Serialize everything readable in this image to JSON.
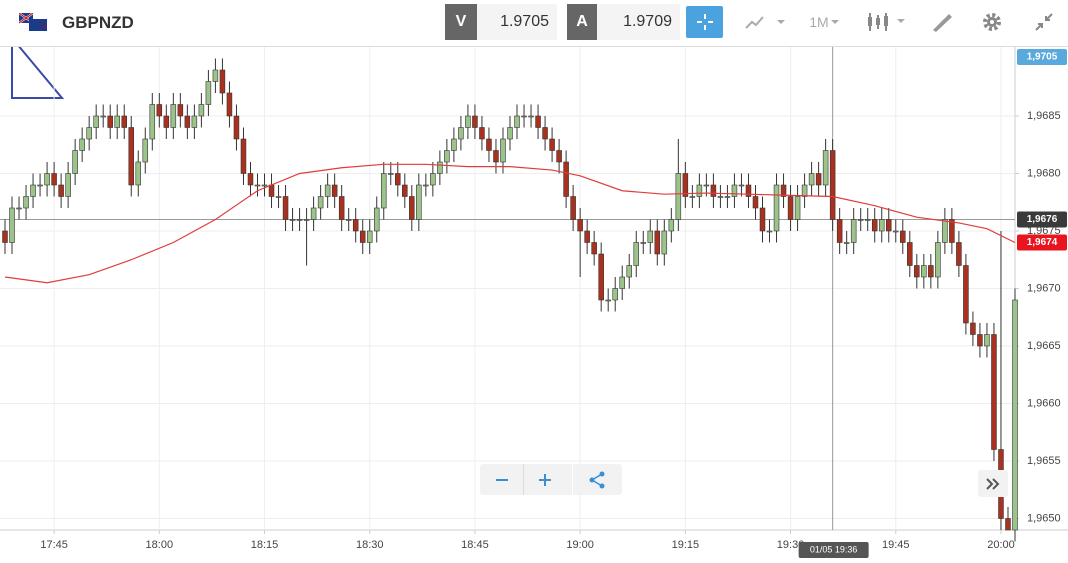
{
  "header": {
    "symbol": "GBPNZD",
    "bid_label": "V",
    "bid": "1.9705",
    "ask_label": "A",
    "ask": "1.9709",
    "timeframe": "1M"
  },
  "chart_data": {
    "type": "candlestick",
    "x": [
      "17:38",
      "17:39",
      "17:40",
      "17:41",
      "17:42",
      "17:43",
      "17:44",
      "17:45",
      "17:46",
      "17:47",
      "17:48",
      "17:49",
      "17:50",
      "17:51",
      "17:52",
      "17:53",
      "17:54",
      "17:55",
      "17:56",
      "17:57",
      "17:58",
      "17:59",
      "18:00",
      "18:01",
      "18:02",
      "18:03",
      "18:04",
      "18:05",
      "18:06",
      "18:07",
      "18:08",
      "18:09",
      "18:10",
      "18:11",
      "18:12",
      "18:13",
      "18:14",
      "18:15",
      "18:16",
      "18:17",
      "18:18",
      "18:19",
      "18:20",
      "18:21",
      "18:22",
      "18:23",
      "18:24",
      "18:25",
      "18:26",
      "18:27",
      "18:28",
      "18:29",
      "18:30",
      "18:31",
      "18:32",
      "18:33",
      "18:34",
      "18:35",
      "18:36",
      "18:37",
      "18:38",
      "18:39",
      "18:40",
      "18:41",
      "18:42",
      "18:43",
      "18:44",
      "18:45",
      "18:46",
      "18:47",
      "18:48",
      "18:49",
      "18:50",
      "18:51",
      "18:52",
      "18:53",
      "18:54",
      "18:55",
      "18:56",
      "18:57",
      "18:58",
      "18:59",
      "19:00",
      "19:01",
      "19:02",
      "19:03",
      "19:04",
      "19:05",
      "19:06",
      "19:07",
      "19:08",
      "19:09",
      "19:10",
      "19:11",
      "19:12",
      "19:13",
      "19:14",
      "19:15",
      "19:16",
      "19:17",
      "19:18",
      "19:19",
      "19:20",
      "19:21",
      "19:22",
      "19:23",
      "19:24",
      "19:25",
      "19:26",
      "19:27",
      "19:28",
      "19:29",
      "19:30",
      "19:31",
      "19:32",
      "19:33",
      "19:34",
      "19:35",
      "19:36",
      "19:37",
      "19:38",
      "19:39",
      "19:40",
      "19:41",
      "19:42",
      "19:43",
      "19:44",
      "19:45",
      "19:46",
      "19:47",
      "19:48",
      "19:49",
      "19:50",
      "19:51",
      "19:52",
      "19:53",
      "19:54",
      "19:55",
      "19:56",
      "19:57",
      "19:58",
      "19:59",
      "20:00",
      "20:01",
      "20:02"
    ],
    "open": [
      1.9675,
      1.9674,
      1.9677,
      1.9677,
      1.9678,
      1.9679,
      1.9679,
      1.968,
      1.9679,
      1.9678,
      1.968,
      1.9682,
      1.9683,
      1.9684,
      1.9685,
      1.9685,
      1.9684,
      1.9685,
      1.9684,
      1.9679,
      1.9681,
      1.9683,
      1.9686,
      1.9685,
      1.9684,
      1.9686,
      1.9685,
      1.9684,
      1.9685,
      1.9686,
      1.9688,
      1.9689,
      1.9687,
      1.9685,
      1.9683,
      1.968,
      1.9679,
      1.9679,
      1.9679,
      1.9678,
      1.9678,
      1.9676,
      1.9676,
      1.9676,
      1.9676,
      1.9677,
      1.9678,
      1.9679,
      1.9678,
      1.9676,
      1.9676,
      1.9675,
      1.9674,
      1.9675,
      1.9677,
      1.968,
      1.968,
      1.9679,
      1.9678,
      1.9676,
      1.9679,
      1.9679,
      1.968,
      1.9681,
      1.9682,
      1.9683,
      1.9684,
      1.9685,
      1.9684,
      1.9683,
      1.9682,
      1.9681,
      1.9683,
      1.9684,
      1.9685,
      1.9685,
      1.9685,
      1.9684,
      1.9683,
      1.9682,
      1.9681,
      1.9678,
      1.9676,
      1.9675,
      1.9674,
      1.9673,
      1.9669,
      1.9669,
      1.967,
      1.9671,
      1.9672,
      1.9674,
      1.9674,
      1.9675,
      1.9673,
      1.9675,
      1.9676,
      1.968,
      1.9678,
      1.9678,
      1.9679,
      1.9679,
      1.9678,
      1.9678,
      1.9678,
      1.9679,
      1.9679,
      1.9678,
      1.9677,
      1.9675,
      1.9675,
      1.9679,
      1.9678,
      1.9676,
      1.9678,
      1.9679,
      1.968,
      1.9679,
      1.9682,
      1.9676,
      1.9674,
      1.9674,
      1.9676,
      1.9676,
      1.9676,
      1.9675,
      1.9676,
      1.9675,
      1.9675,
      1.9674,
      1.9672,
      1.9671,
      1.9672,
      1.9671,
      1.9674,
      1.9676,
      1.9674,
      1.9672,
      1.9667,
      1.9666,
      1.9665,
      1.9666,
      1.9656,
      1.965,
      1.9649
    ],
    "high": [
      1.9676,
      1.9678,
      1.9678,
      1.9679,
      1.968,
      1.968,
      1.9681,
      1.9681,
      1.968,
      1.9681,
      1.9683,
      1.9684,
      1.9685,
      1.9686,
      1.9686,
      1.9686,
      1.9686,
      1.9686,
      1.9685,
      1.9682,
      1.9684,
      1.9687,
      1.9687,
      1.9686,
      1.9687,
      1.9687,
      1.9686,
      1.9686,
      1.9687,
      1.9689,
      1.969,
      1.969,
      1.9688,
      1.9686,
      1.9684,
      1.9681,
      1.968,
      1.968,
      1.968,
      1.9679,
      1.9679,
      1.9677,
      1.9677,
      1.9677,
      1.9678,
      1.9679,
      1.968,
      1.968,
      1.9679,
      1.9677,
      1.9677,
      1.9676,
      1.9676,
      1.9678,
      1.9681,
      1.9681,
      1.9681,
      1.968,
      1.9679,
      1.968,
      1.968,
      1.9681,
      1.9682,
      1.9683,
      1.9684,
      1.9685,
      1.9686,
      1.9686,
      1.9685,
      1.9684,
      1.9683,
      1.9684,
      1.9685,
      1.9686,
      1.9686,
      1.9686,
      1.9686,
      1.9685,
      1.9684,
      1.9683,
      1.9682,
      1.9679,
      1.9677,
      1.9676,
      1.9675,
      1.9674,
      1.967,
      1.9671,
      1.9672,
      1.9673,
      1.9675,
      1.9675,
      1.9676,
      1.9676,
      1.9676,
      1.9677,
      1.9683,
      1.9681,
      1.9679,
      1.968,
      1.968,
      1.968,
      1.9679,
      1.9679,
      1.968,
      1.968,
      1.968,
      1.9679,
      1.9678,
      1.9676,
      1.968,
      1.968,
      1.9679,
      1.9679,
      1.968,
      1.9681,
      1.9681,
      1.9683,
      1.9683,
      1.9677,
      1.9675,
      1.9677,
      1.9677,
      1.9677,
      1.9677,
      1.9677,
      1.9677,
      1.9676,
      1.9676,
      1.9675,
      1.9673,
      1.9673,
      1.9673,
      1.9675,
      1.9677,
      1.9677,
      1.9675,
      1.9673,
      1.9668,
      1.9667,
      1.9667,
      1.9667,
      1.9675,
      1.9651,
      1.967
    ],
    "low": [
      1.9673,
      1.9673,
      1.9676,
      1.9676,
      1.9677,
      1.9678,
      1.9678,
      1.9678,
      1.9677,
      1.9677,
      1.9679,
      1.9681,
      1.9682,
      1.9683,
      1.9684,
      1.9683,
      1.9683,
      1.9683,
      1.9678,
      1.9678,
      1.968,
      1.9682,
      1.9684,
      1.9683,
      1.9683,
      1.9684,
      1.9683,
      1.9683,
      1.9684,
      1.9685,
      1.9687,
      1.9686,
      1.9684,
      1.9682,
      1.9679,
      1.9678,
      1.9678,
      1.9678,
      1.9677,
      1.9677,
      1.9675,
      1.9675,
      1.9675,
      1.9672,
      1.9675,
      1.9676,
      1.9677,
      1.9677,
      1.9675,
      1.9675,
      1.9674,
      1.9673,
      1.9673,
      1.9674,
      1.9676,
      1.9679,
      1.9678,
      1.9677,
      1.9675,
      1.9675,
      1.9678,
      1.9678,
      1.9679,
      1.968,
      1.9681,
      1.9682,
      1.9683,
      1.9683,
      1.9682,
      1.9681,
      1.968,
      1.968,
      1.9682,
      1.9683,
      1.9684,
      1.9684,
      1.9683,
      1.9682,
      1.9681,
      1.968,
      1.9677,
      1.9675,
      1.9671,
      1.9673,
      1.9672,
      1.9668,
      1.9668,
      1.9668,
      1.9669,
      1.967,
      1.9671,
      1.9673,
      1.9673,
      1.9672,
      1.9672,
      1.9674,
      1.9675,
      1.9677,
      1.9677,
      1.9677,
      1.9678,
      1.9677,
      1.9677,
      1.9677,
      1.9677,
      1.9678,
      1.9677,
      1.9676,
      1.9674,
      1.9674,
      1.9674,
      1.9677,
      1.9675,
      1.9675,
      1.9677,
      1.9678,
      1.9678,
      1.9678,
      1.9675,
      1.9673,
      1.9673,
      1.9673,
      1.9675,
      1.9675,
      1.9674,
      1.9674,
      1.9674,
      1.9674,
      1.9673,
      1.9671,
      1.967,
      1.967,
      1.967,
      1.967,
      1.9673,
      1.9673,
      1.9671,
      1.9666,
      1.9665,
      1.9664,
      1.9664,
      1.9655,
      1.9649,
      1.9649,
      1.9648
    ],
    "close": [
      1.9674,
      1.9677,
      1.9677,
      1.9678,
      1.9679,
      1.9679,
      1.968,
      1.9679,
      1.9678,
      1.968,
      1.9682,
      1.9683,
      1.9684,
      1.9685,
      1.9685,
      1.9684,
      1.9685,
      1.9684,
      1.9679,
      1.9681,
      1.9683,
      1.9686,
      1.9685,
      1.9684,
      1.9686,
      1.9685,
      1.9684,
      1.9685,
      1.9686,
      1.9688,
      1.9689,
      1.9687,
      1.9685,
      1.9683,
      1.968,
      1.9679,
      1.9679,
      1.9679,
      1.9678,
      1.9678,
      1.9676,
      1.9676,
      1.9676,
      1.9676,
      1.9677,
      1.9678,
      1.9679,
      1.9678,
      1.9676,
      1.9676,
      1.9675,
      1.9674,
      1.9675,
      1.9677,
      1.968,
      1.968,
      1.9679,
      1.9678,
      1.9676,
      1.9679,
      1.9679,
      1.968,
      1.9681,
      1.9682,
      1.9683,
      1.9684,
      1.9685,
      1.9684,
      1.9683,
      1.9682,
      1.9681,
      1.9683,
      1.9684,
      1.9685,
      1.9685,
      1.9685,
      1.9684,
      1.9683,
      1.9682,
      1.9681,
      1.9678,
      1.9676,
      1.9675,
      1.9674,
      1.9673,
      1.9669,
      1.9669,
      1.967,
      1.9671,
      1.9672,
      1.9674,
      1.9674,
      1.9675,
      1.9673,
      1.9675,
      1.9676,
      1.968,
      1.9678,
      1.9678,
      1.9679,
      1.9679,
      1.9678,
      1.9678,
      1.9678,
      1.9679,
      1.9679,
      1.9678,
      1.9677,
      1.9675,
      1.9675,
      1.9679,
      1.9678,
      1.9676,
      1.9678,
      1.9679,
      1.968,
      1.9679,
      1.9682,
      1.9676,
      1.9674,
      1.9674,
      1.9676,
      1.9676,
      1.9676,
      1.9675,
      1.9676,
      1.9675,
      1.9675,
      1.9674,
      1.9672,
      1.9671,
      1.9672,
      1.9671,
      1.9674,
      1.9676,
      1.9674,
      1.9672,
      1.9667,
      1.9666,
      1.9665,
      1.9666,
      1.9656,
      1.965,
      1.9649,
      1.9669
    ],
    "up_color": "#9cc48a",
    "down_color": "#a8321f",
    "edge_color": "#333333",
    "moving_average": {
      "color": "#e03c3c",
      "x": [
        "17:38",
        "17:44",
        "17:50",
        "17:56",
        "18:02",
        "18:08",
        "18:14",
        "18:20",
        "18:26",
        "18:32",
        "18:38",
        "18:44",
        "18:50",
        "18:56",
        "19:00",
        "19:06",
        "19:12",
        "19:18",
        "19:24",
        "19:30",
        "19:36",
        "19:42",
        "19:48",
        "19:54",
        "19:58",
        "20:02"
      ],
      "values": [
        1.9671,
        1.96705,
        1.96712,
        1.96725,
        1.9674,
        1.9676,
        1.96785,
        1.968,
        1.96805,
        1.96808,
        1.96808,
        1.96806,
        1.96806,
        1.96803,
        1.96798,
        1.96785,
        1.96782,
        1.96783,
        1.96782,
        1.96781,
        1.9678,
        1.96772,
        1.96762,
        1.96757,
        1.96752,
        1.9674
      ]
    },
    "xlim": [
      "17:38",
      "20:02"
    ],
    "xticks": [
      "17:45",
      "18:00",
      "18:15",
      "18:30",
      "18:45",
      "19:00",
      "19:15",
      "19:30",
      "19:45",
      "20:00"
    ],
    "ylim": [
      1.9649,
      1.9691
    ],
    "yticks": [
      {
        "value": 1.965,
        "label": "1,9650"
      },
      {
        "value": 1.9655,
        "label": "1,9655"
      },
      {
        "value": 1.966,
        "label": "1,9660"
      },
      {
        "value": 1.9665,
        "label": "1,9665"
      },
      {
        "value": 1.967,
        "label": "1,9670"
      },
      {
        "value": 1.9675,
        "label": "1,9675"
      },
      {
        "value": 1.968,
        "label": "1,9680"
      },
      {
        "value": 1.9685,
        "label": "1,9685"
      }
    ],
    "grid": true,
    "price_tags": [
      {
        "value": 1.9705,
        "label": "1,9705",
        "color": "#5aa9dc"
      },
      {
        "value": 1.9676,
        "label": "1,9676",
        "color": "#3a3a3a"
      },
      {
        "value": 1.9674,
        "label": "1,9674",
        "color": "#e8141e"
      }
    ],
    "crosshair": {
      "x": "19:36",
      "label": "01/05 19:36",
      "value": 1.9676
    }
  }
}
